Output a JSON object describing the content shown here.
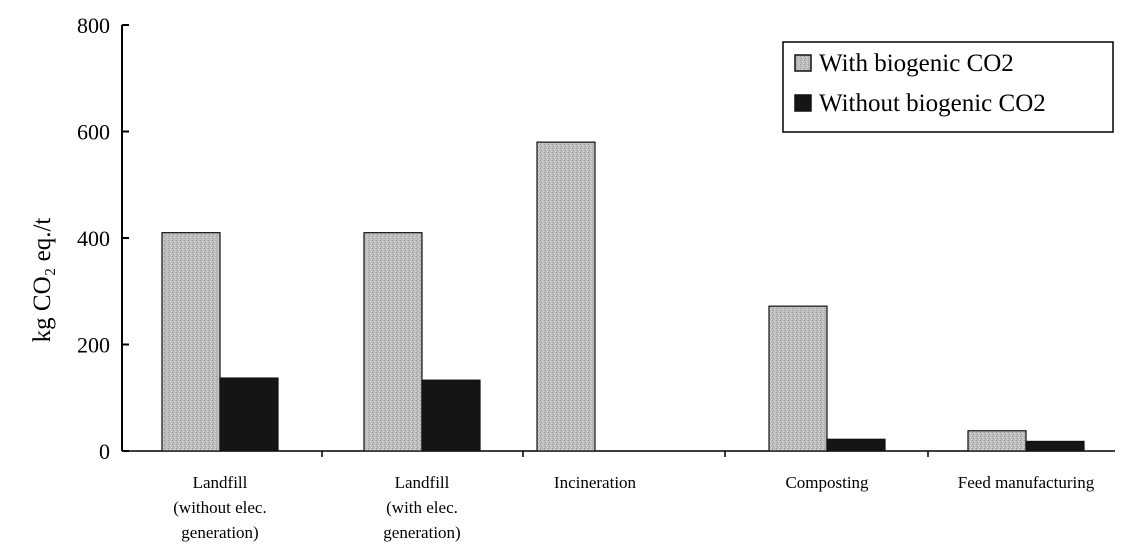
{
  "chart_data": {
    "type": "bar",
    "title": "",
    "ylabel": "kg CO₂ eq./t",
    "xlabel": "",
    "ylim": [
      0,
      800
    ],
    "yticks": [
      0,
      200,
      400,
      600,
      800
    ],
    "grid": false,
    "legend_position": "top-right",
    "categories": [
      [
        "Landfill",
        "(without elec.",
        "generation)"
      ],
      [
        "Landfill",
        "(with elec.",
        "generation)"
      ],
      [
        "Incineration"
      ],
      [
        "Composting"
      ],
      [
        "Feed manufacturing"
      ]
    ],
    "series": [
      {
        "name": "With biogenic CO2",
        "values": [
          410,
          410,
          580,
          272,
          38
        ],
        "color": "#b9b9b9"
      },
      {
        "name": "Without biogenic CO2",
        "values": [
          137,
          133,
          0,
          22,
          18
        ],
        "color": "#151515"
      }
    ]
  }
}
